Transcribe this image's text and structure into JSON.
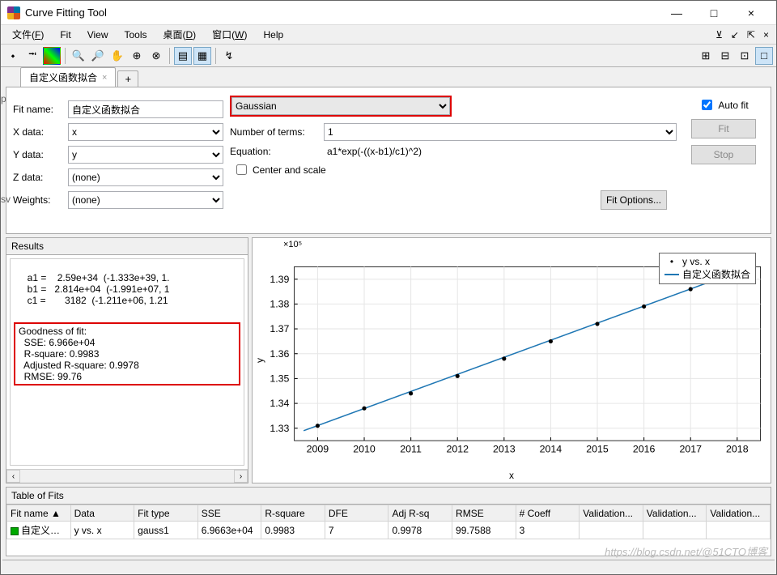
{
  "window": {
    "title": "Curve Fitting Tool",
    "min": "—",
    "max": "□",
    "close": "×"
  },
  "menus": [
    "文件(F)",
    "Fit",
    "View",
    "Tools",
    "桌面(D)",
    "窗口(W)",
    "Help"
  ],
  "mdi": [
    "⊻",
    "↙",
    "⇱",
    "×"
  ],
  "tab": {
    "label": "自定义函数拟合",
    "add": "+"
  },
  "form": {
    "fitNameLabel": "Fit name:",
    "fitName": "自定义函数拟合",
    "xLabel": "X data:",
    "x": "x",
    "yLabel": "Y data:",
    "y": "y",
    "zLabel": "Z data:",
    "z": "(none)",
    "wLabel": "Weights:",
    "w": "(none)"
  },
  "fit": {
    "type": "Gaussian",
    "ntermsLabel": "Number of terms:",
    "nterms": "1",
    "eqLabel": "Equation:",
    "eq": "a1*exp(-((x-b1)/c1)^2)",
    "centerScale": "Center and scale",
    "fitOptions": "Fit Options...",
    "autoFit": "Auto fit",
    "fitBtn": "Fit",
    "stopBtn": "Stop"
  },
  "results": {
    "title": "Results",
    "coeffs": "     a1 =    2.59e+34  (-1.333e+39, 1.\n     b1 =   2.814e+04  (-1.991e+07, 1\n     c1 =       3182  (-1.211e+06, 1.21",
    "gofTitle": "Goodness of fit:",
    "gof": "  SSE: 6.966e+04\n  R-square: 0.9983\n  Adjusted R-square: 0.9978\n  RMSE: 99.76"
  },
  "chart": {
    "ymult": "×10⁵",
    "ylabel": "y",
    "xlabel": "x",
    "yticks": [
      "1.33",
      "1.34",
      "1.35",
      "1.36",
      "1.37",
      "1.38",
      "1.39"
    ],
    "xticks": [
      "2009",
      "2010",
      "2011",
      "2012",
      "2013",
      "2014",
      "2015",
      "2016",
      "2017",
      "2018"
    ],
    "xlim": [
      2008.5,
      2018.5
    ],
    "ylim": [
      1.325,
      1.395
    ],
    "dataColor": "#000000",
    "lineColor": "#1f77b4",
    "gridColor": "#e6e6e6",
    "axisColor": "#000000",
    "bg": "#ffffff",
    "marker": "•",
    "points": [
      {
        "x": 2009,
        "y": 1.331
      },
      {
        "x": 2010,
        "y": 1.338
      },
      {
        "x": 2011,
        "y": 1.344
      },
      {
        "x": 2012,
        "y": 1.351
      },
      {
        "x": 2013,
        "y": 1.358
      },
      {
        "x": 2014,
        "y": 1.365
      },
      {
        "x": 2015,
        "y": 1.372
      },
      {
        "x": 2016,
        "y": 1.379
      },
      {
        "x": 2017,
        "y": 1.386
      },
      {
        "x": 2018,
        "y": 1.393
      }
    ],
    "line": [
      {
        "x": 2008.7,
        "y": 1.329
      },
      {
        "x": 2018.3,
        "y": 1.395
      }
    ],
    "legend": {
      "data": "y vs. x",
      "fit": "自定义函数拟合"
    }
  },
  "tof": {
    "title": "Table of Fits",
    "cols": [
      "Fit name ▲",
      "Data",
      "Fit type",
      "SSE",
      "R-square",
      "DFE",
      "Adj R-sq",
      "RMSE",
      "# Coeff",
      "Validation...",
      "Validation...",
      "Validation..."
    ],
    "row": [
      "自定义函...",
      "y vs. x",
      "gauss1",
      "6.9663e+04",
      "0.9983",
      "7",
      "0.9978",
      "99.7588",
      "3",
      "",
      "",
      ""
    ]
  },
  "watermark": "https://blog.csdn.net/@51CTO博客"
}
